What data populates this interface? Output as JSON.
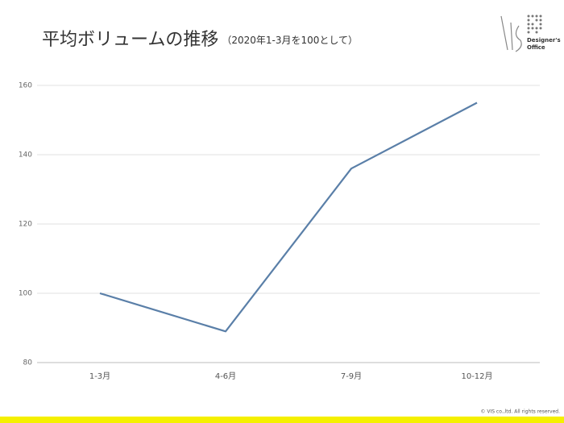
{
  "chart_data": {
    "type": "line",
    "title": "平均ボリュームの推移",
    "subtitle": "（2020年1-3月を100として）",
    "categories": [
      "1-3月",
      "4-6月",
      "7-9月",
      "10-12月"
    ],
    "values": [
      100,
      89,
      136,
      155
    ],
    "color": "#5a7fa8",
    "ylim": [
      80,
      160
    ],
    "yticks": [
      80,
      100,
      120,
      140,
      160
    ],
    "grid": true
  },
  "logo": {
    "line1": "Designer's",
    "line2": "Office"
  },
  "footer": "© VIS co.,ltd. All rights reserved."
}
